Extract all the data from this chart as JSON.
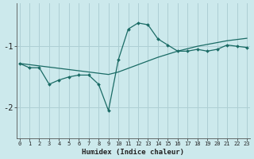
{
  "xlabel": "Humidex (Indice chaleur)",
  "background_color": "#cce9ec",
  "line_color": "#1a6b65",
  "grid_color": "#aecfd4",
  "x_ticks": [
    0,
    1,
    2,
    3,
    4,
    5,
    6,
    7,
    8,
    9,
    10,
    11,
    12,
    13,
    14,
    15,
    16,
    17,
    18,
    19,
    20,
    21,
    22,
    23
  ],
  "ylim": [
    -2.5,
    -0.3
  ],
  "xlim": [
    -0.3,
    23.3
  ],
  "series1_x": [
    0,
    1,
    2,
    3,
    4,
    5,
    6,
    7,
    8,
    9,
    10,
    11,
    12,
    13,
    14,
    15,
    16,
    17,
    18,
    19,
    20,
    21,
    22,
    23
  ],
  "series1_y": [
    -1.28,
    -1.35,
    -1.35,
    -1.62,
    -1.55,
    -1.5,
    -1.47,
    -1.47,
    -1.62,
    -2.05,
    -1.22,
    -0.72,
    -0.62,
    -0.65,
    -0.88,
    -0.98,
    -1.08,
    -1.08,
    -1.05,
    -1.08,
    -1.05,
    -0.98,
    -1.0,
    -1.02
  ],
  "series2_x": [
    0,
    1,
    2,
    3,
    4,
    5,
    6,
    7,
    8,
    9,
    10,
    11,
    12,
    13,
    14,
    15,
    16,
    17,
    18,
    19,
    20,
    21,
    22,
    23
  ],
  "series2_y": [
    -1.28,
    -1.3,
    -1.32,
    -1.34,
    -1.36,
    -1.38,
    -1.4,
    -1.42,
    -1.44,
    -1.46,
    -1.42,
    -1.36,
    -1.3,
    -1.24,
    -1.18,
    -1.13,
    -1.08,
    -1.04,
    -1.0,
    -0.97,
    -0.94,
    -0.91,
    -0.89,
    -0.87
  ],
  "yticks": [
    -2.0,
    -1.0
  ],
  "ytick_labels": [
    "-2",
    "-1"
  ]
}
